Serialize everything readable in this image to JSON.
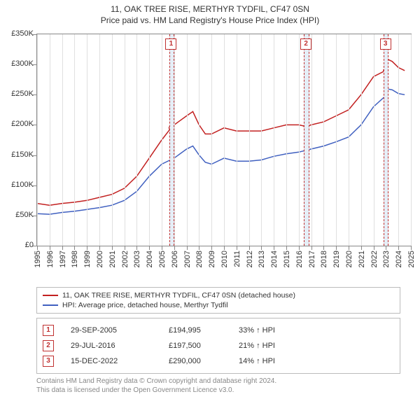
{
  "title": "11, OAK TREE RISE, MERTHYR TYDFIL, CF47 0SN",
  "subtitle": "Price paid vs. HM Land Registry's House Price Index (HPI)",
  "chart": {
    "type": "line",
    "background_color": "#ffffff",
    "grid_color": "#e0e0e0",
    "axis_color": "#888888",
    "font_size": 11,
    "x_years": [
      1995,
      1996,
      1997,
      1998,
      1999,
      2000,
      2001,
      2002,
      2003,
      2004,
      2005,
      2006,
      2007,
      2008,
      2009,
      2010,
      2011,
      2012,
      2013,
      2014,
      2015,
      2016,
      2017,
      2018,
      2019,
      2020,
      2021,
      2022,
      2023,
      2024,
      2025
    ],
    "xlim": [
      1995,
      2025
    ],
    "ylim": [
      0,
      350000
    ],
    "ytick_step": 50000,
    "ytick_labels": [
      "£0",
      "£50K",
      "£100K",
      "£150K",
      "£200K",
      "£250K",
      "£300K",
      "£350K"
    ],
    "series": [
      {
        "name": "property",
        "color": "#c22020",
        "line_width": 1.5,
        "points": [
          [
            1995,
            70000
          ],
          [
            1996,
            67000
          ],
          [
            1997,
            70000
          ],
          [
            1998,
            72000
          ],
          [
            1999,
            75000
          ],
          [
            2000,
            80000
          ],
          [
            2001,
            85000
          ],
          [
            2002,
            95000
          ],
          [
            2003,
            115000
          ],
          [
            2004,
            145000
          ],
          [
            2005,
            175000
          ],
          [
            2005.75,
            194995
          ],
          [
            2006,
            200000
          ],
          [
            2007,
            215000
          ],
          [
            2007.5,
            222000
          ],
          [
            2008,
            200000
          ],
          [
            2008.5,
            185000
          ],
          [
            2009,
            185000
          ],
          [
            2010,
            195000
          ],
          [
            2011,
            190000
          ],
          [
            2012,
            190000
          ],
          [
            2013,
            190000
          ],
          [
            2014,
            195000
          ],
          [
            2015,
            200000
          ],
          [
            2016,
            200000
          ],
          [
            2016.58,
            197500
          ],
          [
            2017,
            200000
          ],
          [
            2018,
            205000
          ],
          [
            2019,
            215000
          ],
          [
            2020,
            225000
          ],
          [
            2021,
            250000
          ],
          [
            2022,
            280000
          ],
          [
            2022.96,
            290000
          ],
          [
            2023,
            310000
          ],
          [
            2023.5,
            305000
          ],
          [
            2024,
            295000
          ],
          [
            2024.5,
            290000
          ]
        ]
      },
      {
        "name": "hpi",
        "color": "#4060c0",
        "line_width": 1.5,
        "points": [
          [
            1995,
            53000
          ],
          [
            1996,
            52000
          ],
          [
            1997,
            55000
          ],
          [
            1998,
            57000
          ],
          [
            1999,
            60000
          ],
          [
            2000,
            63000
          ],
          [
            2001,
            67000
          ],
          [
            2002,
            75000
          ],
          [
            2003,
            90000
          ],
          [
            2004,
            115000
          ],
          [
            2005,
            135000
          ],
          [
            2006,
            145000
          ],
          [
            2007,
            160000
          ],
          [
            2007.5,
            165000
          ],
          [
            2008,
            150000
          ],
          [
            2008.5,
            138000
          ],
          [
            2009,
            135000
          ],
          [
            2010,
            145000
          ],
          [
            2011,
            140000
          ],
          [
            2012,
            140000
          ],
          [
            2013,
            142000
          ],
          [
            2014,
            148000
          ],
          [
            2015,
            152000
          ],
          [
            2016,
            155000
          ],
          [
            2017,
            160000
          ],
          [
            2018,
            165000
          ],
          [
            2019,
            172000
          ],
          [
            2020,
            180000
          ],
          [
            2021,
            200000
          ],
          [
            2022,
            230000
          ],
          [
            2022.96,
            248000
          ],
          [
            2023,
            260000
          ],
          [
            2023.5,
            258000
          ],
          [
            2024,
            252000
          ],
          [
            2024.5,
            250000
          ]
        ]
      }
    ],
    "markers": [
      {
        "n": "1",
        "x": 2005.75,
        "band_width_years": 0.3
      },
      {
        "n": "2",
        "x": 2016.58,
        "band_width_years": 0.3
      },
      {
        "n": "3",
        "x": 2022.96,
        "band_width_years": 0.3
      }
    ]
  },
  "legend": {
    "items": [
      {
        "color": "#c22020",
        "label": "11, OAK TREE RISE, MERTHYR TYDFIL, CF47 0SN (detached house)"
      },
      {
        "color": "#4060c0",
        "label": "HPI: Average price, detached house, Merthyr Tydfil"
      }
    ]
  },
  "sales": [
    {
      "n": "1",
      "date": "29-SEP-2005",
      "price": "£194,995",
      "diff": "33% ↑ HPI"
    },
    {
      "n": "2",
      "date": "29-JUL-2016",
      "price": "£197,500",
      "diff": "21% ↑ HPI"
    },
    {
      "n": "3",
      "date": "15-DEC-2022",
      "price": "£290,000",
      "diff": "14% ↑ HPI"
    }
  ],
  "footer": {
    "line1": "Contains HM Land Registry data © Crown copyright and database right 2024.",
    "line2": "This data is licensed under the Open Government Licence v3.0."
  },
  "marker_band_color": "#e5eef7",
  "marker_outline": "#c03030"
}
